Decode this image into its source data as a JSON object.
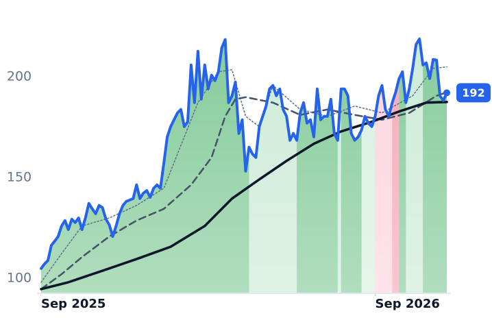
{
  "chart_data": {
    "type": "line",
    "last_value": 192,
    "xlim": [
      0,
      119
    ],
    "xticks": [
      {
        "value": 0,
        "label": "Sep 2025"
      },
      {
        "value": 98,
        "label": "Sep 2026"
      }
    ],
    "ylim": [
      92.5,
      238
    ],
    "yticks": [
      100,
      150,
      200
    ],
    "area_color": "#86cc9b",
    "regions": [
      {
        "from": 61,
        "to": 75,
        "color": "#cdebd8"
      },
      {
        "from": 87,
        "to": 88,
        "color": "#cdebd8"
      },
      {
        "from": 94,
        "to": 98,
        "color": "#d8f0e0"
      },
      {
        "from": 98,
        "to": 103,
        "color": "#fcd5de"
      },
      {
        "from": 103,
        "to": 105,
        "color": "#f8a8ba"
      },
      {
        "from": 107,
        "to": 112,
        "color": "#cdebd8"
      }
    ],
    "series": [
      {
        "color": "#2563eb",
        "style": "solid",
        "width": 4,
        "values": [
          104.8,
          107.1,
          108.8,
          116.3,
          118.4,
          120.7,
          125.9,
          128.6,
          124.1,
          129.3,
          127.6,
          129.9,
          124.1,
          129.9,
          137.1,
          134.4,
          132,
          136.1,
          135,
          129.3,
          126.5,
          120.7,
          125.9,
          132,
          136.1,
          138.1,
          138.8,
          139.5,
          146.3,
          139.5,
          142.2,
          143.5,
          140.1,
          144.6,
          146.3,
          144.6,
          157.1,
          170.1,
          175.2,
          178.6,
          182,
          183.7,
          175.2,
          177.6,
          205.8,
          187.1,
          212.6,
          188.8,
          205.8,
          193.9,
          200.7,
          198,
          202.4,
          214.3,
          218.4,
          187.1,
          190.5,
          197.3,
          171.8,
          178.6,
          153.1,
          165,
          161.6,
          159.9,
          175.2,
          180.3,
          185.4,
          193.9,
          195.6,
          190.5,
          193.9,
          183.7,
          180.3,
          168.4,
          171.8,
          168.4,
          182,
          187.1,
          176.9,
          178.6,
          170.1,
          193.9,
          178.6,
          180.3,
          180.3,
          188.8,
          171.8,
          168.4,
          193.9,
          193.9,
          190.5,
          171.8,
          168.4,
          170.1,
          173.5,
          180.3,
          176.9,
          175.2,
          180.3,
          190.5,
          195.6,
          183.7,
          180.3,
          187.1,
          192.2,
          199,
          202.4,
          187.1,
          193.9,
          204.1,
          216,
          218.7,
          205.8,
          206.8,
          199,
          208.5,
          208.2,
          190.5,
          188.1,
          192
        ]
      },
      {
        "color": "#64748b",
        "style": "dotted",
        "width": 1.6,
        "x": [
          0,
          6,
          12,
          20,
          28,
          36,
          42,
          46,
          52,
          56,
          60,
          64,
          68,
          76,
          84,
          92,
          100,
          109,
          115,
          119
        ],
        "values": [
          98,
          112.2,
          125.9,
          129.9,
          136.1,
          144.6,
          170.1,
          187.1,
          202.4,
          203.4,
          180.3,
          175.2,
          195.6,
          183.7,
          180.3,
          185.4,
          182,
          190.5,
          204.1,
          204.8
        ]
      },
      {
        "color": "#475569",
        "style": "dashed",
        "width": 2.6,
        "x": [
          0,
          6,
          12,
          20,
          28,
          36,
          44,
          50,
          54,
          57,
          60,
          68,
          76,
          84,
          92,
          100,
          108,
          116,
          119
        ],
        "values": [
          94.6,
          102,
          110.5,
          120.7,
          128.6,
          134.4,
          146.3,
          159.9,
          180.3,
          188.8,
          189.8,
          187.1,
          181,
          183.7,
          181,
          178.6,
          182,
          190.5,
          192.2
        ]
      },
      {
        "color": "#0f172a",
        "style": "solid",
        "width": 3.6,
        "x": [
          0,
          8,
          18,
          28,
          38,
          48,
          56,
          64,
          72,
          80,
          88,
          97,
          105,
          113,
          119
        ],
        "values": [
          94.6,
          98,
          103.7,
          109.5,
          115.6,
          125.9,
          139.5,
          149,
          158.2,
          166.7,
          172.8,
          177.6,
          182.7,
          187.1,
          187.4
        ]
      }
    ]
  }
}
